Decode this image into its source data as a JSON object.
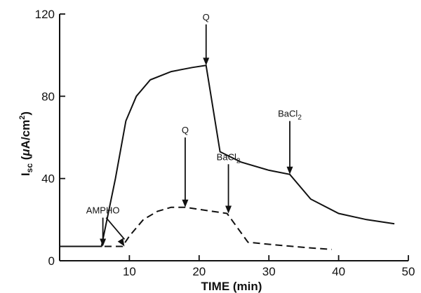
{
  "chart_data": {
    "type": "line",
    "xlabel": "TIME (min)",
    "ylabel": {
      "main": "I",
      "sub": "sc",
      "units_open": " (",
      "mu": "μ",
      "units_mid": "A/cm",
      "sup": "2",
      "units_close": ")"
    },
    "xlim": [
      0,
      50
    ],
    "ylim": [
      0,
      120
    ],
    "x_ticks": [
      0,
      10,
      20,
      30,
      40,
      50
    ],
    "y_ticks": [
      0,
      40,
      80,
      120
    ],
    "x_tick_labels": [
      "",
      "10",
      "20",
      "30",
      "40",
      "50"
    ],
    "y_tick_labels": [
      "0",
      "40",
      "80",
      "120"
    ],
    "series": [
      {
        "style": "solid",
        "x": [
          0,
          6,
          8,
          9.5,
          11,
          13,
          16,
          19,
          21,
          23,
          26,
          30,
          33,
          36,
          40,
          44,
          48
        ],
        "y": [
          7,
          7,
          40,
          68,
          80,
          88,
          92,
          94,
          95,
          53,
          48,
          44,
          42,
          30,
          23,
          20,
          18
        ]
      },
      {
        "style": "dashed",
        "x": [
          0,
          6,
          9,
          10,
          12,
          14,
          16,
          18,
          20,
          24,
          27,
          30,
          35,
          39
        ],
        "y": [
          7,
          7,
          7,
          12,
          20,
          24,
          26,
          26,
          25,
          23,
          9,
          8,
          6.5,
          5.5
        ]
      }
    ],
    "annotations": [
      {
        "text": "AMPHO",
        "text_x": 6.2,
        "text_y": 23,
        "arrows": [
          {
            "x": 6.2,
            "y": 7
          },
          {
            "x": 9.3,
            "y": 7
          }
        ]
      },
      {
        "text": "Q",
        "text_x": 21,
        "text_y": 117,
        "arrows": [
          {
            "x": 21,
            "y": 95
          }
        ]
      },
      {
        "text": "Q",
        "text_x": 18,
        "text_y": 62,
        "arrows": [
          {
            "x": 18,
            "y": 26
          }
        ]
      },
      {
        "text": "BaCl",
        "sub": "2",
        "text_x": 24.2,
        "text_y": 49,
        "arrows": [
          {
            "x": 24.2,
            "y": 23
          }
        ]
      },
      {
        "text": "BaCl",
        "sub": "2",
        "text_x": 33,
        "text_y": 70,
        "arrows": [
          {
            "x": 33,
            "y": 42
          }
        ]
      }
    ]
  }
}
